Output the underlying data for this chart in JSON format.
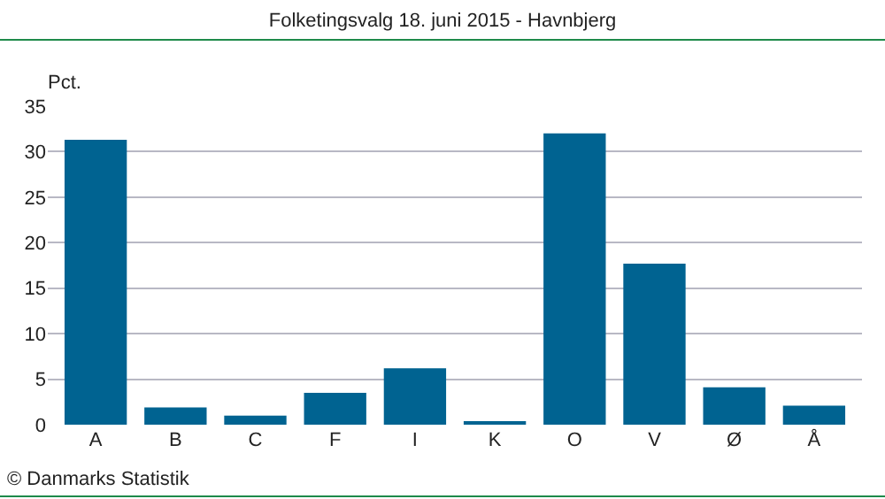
{
  "chart_data": {
    "type": "bar",
    "title": "Folketingsvalg 18. juni 2015 - Havnbjerg",
    "ylabel": "Pct.",
    "categories": [
      "A",
      "B",
      "C",
      "F",
      "I",
      "K",
      "O",
      "V",
      "Ø",
      "Å"
    ],
    "values": [
      31.3,
      1.9,
      1.0,
      3.5,
      6.2,
      0.4,
      32.0,
      17.7,
      4.1,
      2.1
    ],
    "color": "#006391",
    "ylim": [
      0,
      35
    ],
    "yticks": [
      0,
      5,
      10,
      15,
      20,
      25,
      30,
      35
    ],
    "grid": "y",
    "annotations": [
      "© Danmarks Statistik"
    ]
  }
}
